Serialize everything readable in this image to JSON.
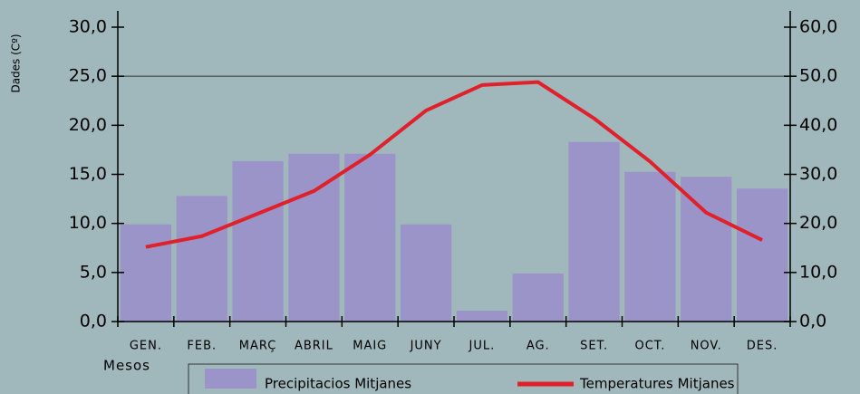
{
  "chart_data": {
    "type": "bar_line",
    "y_label": "Dades (Cº)",
    "x_label": "Mesos",
    "categories": [
      "GEN.",
      "FEB.",
      "MARÇ",
      "ABRIL",
      "MAIG",
      "JUNY",
      "JUL.",
      "AG.",
      "SET.",
      "OCT.",
      "NOV.",
      "DES."
    ],
    "series": [
      {
        "name": "Precipitacios Mitjanes",
        "type": "bar",
        "axis": "y2",
        "color": "#9b94c8",
        "values": [
          19.8,
          25.6,
          32.7,
          34.2,
          34.2,
          19.8,
          2.2,
          9.8,
          36.6,
          30.5,
          29.5,
          27.1
        ]
      },
      {
        "name": "Temperatures Mitjanes",
        "type": "line",
        "axis": "y",
        "color": "#e0202a",
        "values": [
          7.6,
          8.7,
          11.0,
          13.3,
          17.0,
          21.5,
          24.1,
          24.4,
          20.7,
          16.3,
          11.1,
          8.3
        ]
      }
    ],
    "ylim": [
      0,
      30
    ],
    "yticks": [
      {
        "value": 0,
        "label": "0,0"
      },
      {
        "value": 5,
        "label": "5,0"
      },
      {
        "value": 10,
        "label": "10,0"
      },
      {
        "value": 15,
        "label": "15,0"
      },
      {
        "value": 20,
        "label": "20,0"
      },
      {
        "value": 25,
        "label": "25,0"
      },
      {
        "value": 30,
        "label": "30,0"
      }
    ],
    "y2lim": [
      0,
      60
    ],
    "y2ticks": [
      {
        "value": 0,
        "label": "0,0"
      },
      {
        "value": 10,
        "label": "10,0"
      },
      {
        "value": 20,
        "label": "20,0"
      },
      {
        "value": 30,
        "label": "30,0"
      },
      {
        "value": 40,
        "label": "40,0"
      },
      {
        "value": 50,
        "label": "50,0"
      },
      {
        "value": 60,
        "label": "60,0"
      }
    ],
    "grid_lines": [
      25
    ],
    "legend": "bottom"
  }
}
